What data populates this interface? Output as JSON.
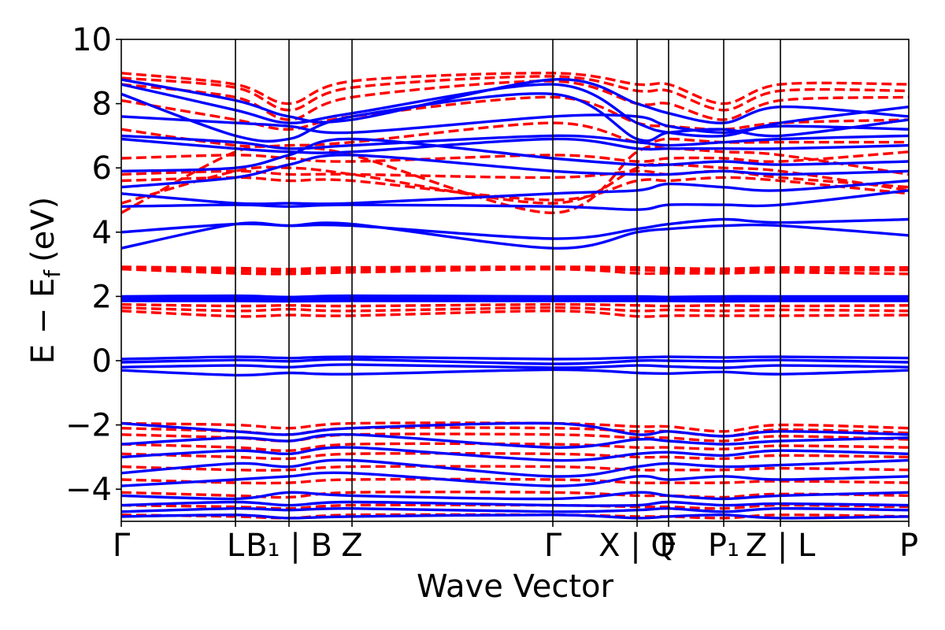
{
  "chart_data": {
    "type": "line",
    "xlabel": "Wave Vector",
    "ylabel_main": "E − E",
    "ylabel_sub": "f",
    "ylabel_unit": "(eV)",
    "ylim": [
      -5,
      10
    ],
    "yticks": [
      -4,
      -2,
      0,
      2,
      4,
      6,
      8,
      10
    ],
    "ytick_labels": [
      "−4",
      "−2",
      "0",
      "2",
      "4",
      "6",
      "8",
      "10"
    ],
    "xlim": [
      0,
      10
    ],
    "kpoints": [
      {
        "x": 0.0,
        "label": "Γ"
      },
      {
        "x": 1.45,
        "label": "L"
      },
      {
        "x": 2.13,
        "label": "B₁ | B"
      },
      {
        "x": 2.93,
        "label": "Z"
      },
      {
        "x": 5.48,
        "label": "Γ"
      },
      {
        "x": 6.55,
        "label": "X | Q"
      },
      {
        "x": 6.95,
        "label": "F"
      },
      {
        "x": 7.65,
        "label": "P₁"
      },
      {
        "x": 8.37,
        "label": "Z | L"
      },
      {
        "x": 10.0,
        "label": "P"
      }
    ],
    "series_styles": [
      {
        "style": "solid",
        "color": "#0000ff"
      },
      {
        "style": "dashed",
        "color": "#ff0000"
      }
    ],
    "blue_bands": [
      [
        8.75,
        8.1,
        7.6,
        7.5,
        8.75,
        8.0,
        7.7,
        7.4,
        7.9,
        7.6
      ],
      [
        8.6,
        7.8,
        7.4,
        7.7,
        8.6,
        7.4,
        7.1,
        7.0,
        7.4,
        7.9
      ],
      [
        8.3,
        7.0,
        6.9,
        7.6,
        8.3,
        6.9,
        7.1,
        7.2,
        7.0,
        7.5
      ],
      [
        7.6,
        7.4,
        7.3,
        7.1,
        7.6,
        7.6,
        7.3,
        7.1,
        7.3,
        7.2
      ],
      [
        7.0,
        6.8,
        6.6,
        6.7,
        7.0,
        6.8,
        6.7,
        6.8,
        6.9,
        7.0
      ],
      [
        6.9,
        6.6,
        6.5,
        6.5,
        6.9,
        6.6,
        6.6,
        6.6,
        6.6,
        6.7
      ],
      [
        5.9,
        6.0,
        6.4,
        6.9,
        6.3,
        6.1,
        6.1,
        6.2,
        6.1,
        6.2
      ],
      [
        5.4,
        5.7,
        6.1,
        6.4,
        5.9,
        5.8,
        5.8,
        5.9,
        5.8,
        5.9
      ],
      [
        5.2,
        4.9,
        4.9,
        4.9,
        5.2,
        5.3,
        5.5,
        5.4,
        5.3,
        5.6
      ],
      [
        4.8,
        4.85,
        4.8,
        4.85,
        4.8,
        4.7,
        4.85,
        4.85,
        4.85,
        5.3
      ],
      [
        4.0,
        4.25,
        4.2,
        4.2,
        3.8,
        4.1,
        4.25,
        4.4,
        4.3,
        4.4
      ],
      [
        3.5,
        4.25,
        4.2,
        4.25,
        3.5,
        4.0,
        4.1,
        4.2,
        4.2,
        3.9
      ],
      [
        2.0,
        2.02,
        1.98,
        2.02,
        2.0,
        2.0,
        1.98,
        2.0,
        2.0,
        2.0
      ],
      [
        1.95,
        1.97,
        1.95,
        1.96,
        1.95,
        1.96,
        1.95,
        1.96,
        1.97,
        1.96
      ],
      [
        1.9,
        1.91,
        1.9,
        1.91,
        1.9,
        1.9,
        1.9,
        1.91,
        1.9,
        1.9
      ],
      [
        1.86,
        1.86,
        1.85,
        1.86,
        1.86,
        1.86,
        1.86,
        1.85,
        1.86,
        1.86
      ],
      [
        0.05,
        0.12,
        0.08,
        0.12,
        0.05,
        0.1,
        0.12,
        0.1,
        0.12,
        0.08
      ],
      [
        -0.05,
        0.02,
        -0.02,
        0.04,
        -0.1,
        0.0,
        0.0,
        -0.02,
        0.02,
        -0.05
      ],
      [
        -0.2,
        -0.15,
        -0.2,
        -0.12,
        -0.22,
        -0.15,
        -0.18,
        -0.22,
        -0.15,
        -0.2
      ],
      [
        -0.3,
        -0.45,
        -0.38,
        -0.42,
        -0.28,
        -0.38,
        -0.4,
        -0.35,
        -0.42,
        -0.3
      ],
      [
        -1.95,
        -2.2,
        -2.3,
        -2.1,
        -1.95,
        -2.3,
        -2.2,
        -2.35,
        -2.2,
        -2.3
      ],
      [
        -2.6,
        -2.4,
        -2.5,
        -2.3,
        -2.7,
        -2.45,
        -2.5,
        -2.6,
        -2.5,
        -2.4
      ],
      [
        -3.0,
        -2.8,
        -2.9,
        -2.7,
        -3.1,
        -2.9,
        -2.85,
        -2.95,
        -2.8,
        -2.9
      ],
      [
        -3.5,
        -3.2,
        -3.3,
        -3.1,
        -3.6,
        -3.3,
        -3.2,
        -3.3,
        -3.25,
        -3.1
      ],
      [
        -3.9,
        -3.7,
        -3.6,
        -3.5,
        -3.9,
        -3.6,
        -3.7,
        -3.6,
        -3.7,
        -3.6
      ],
      [
        -4.2,
        -4.3,
        -4.1,
        -4.2,
        -4.3,
        -4.1,
        -4.2,
        -4.3,
        -4.2,
        -4.1
      ],
      [
        -4.5,
        -4.4,
        -4.5,
        -4.4,
        -4.5,
        -4.5,
        -4.4,
        -4.5,
        -4.45,
        -4.5
      ],
      [
        -4.7,
        -4.6,
        -4.65,
        -4.6,
        -4.7,
        -4.65,
        -4.6,
        -4.7,
        -4.6,
        -4.65
      ],
      [
        -4.85,
        -4.8,
        -4.9,
        -4.85,
        -4.8,
        -4.9,
        -4.85,
        -4.8,
        -4.9,
        -4.85
      ]
    ],
    "red_bands": [
      [
        8.95,
        8.6,
        8.0,
        8.7,
        8.95,
        8.6,
        8.6,
        8.0,
        8.6,
        8.6
      ],
      [
        8.8,
        8.5,
        7.8,
        8.5,
        8.85,
        8.4,
        8.4,
        7.8,
        8.4,
        8.4
      ],
      [
        8.6,
        8.2,
        7.5,
        8.2,
        8.7,
        8.0,
        8.0,
        7.5,
        8.1,
        8.2
      ],
      [
        8.1,
        7.5,
        7.2,
        7.6,
        8.2,
        7.4,
        7.3,
        7.2,
        7.4,
        7.5
      ],
      [
        7.2,
        6.7,
        6.7,
        6.8,
        7.4,
        6.8,
        6.9,
        6.8,
        6.8,
        6.8
      ],
      [
        6.3,
        6.4,
        6.3,
        6.2,
        6.4,
        6.2,
        6.3,
        6.3,
        6.2,
        6.5
      ],
      [
        5.8,
        5.9,
        5.8,
        5.8,
        5.7,
        5.9,
        5.8,
        5.9,
        5.7,
        5.4
      ],
      [
        5.6,
        5.7,
        5.6,
        5.6,
        5.0,
        5.6,
        5.6,
        5.7,
        5.6,
        5.2
      ],
      [
        4.9,
        5.9,
        6.0,
        5.8,
        4.9,
        6.0,
        6.1,
        6.0,
        5.9,
        5.3
      ],
      [
        4.6,
        6.5,
        6.6,
        6.4,
        4.6,
        6.5,
        6.6,
        6.5,
        6.4,
        5.8
      ],
      [
        2.92,
        2.88,
        2.85,
        2.9,
        2.92,
        2.9,
        2.88,
        2.86,
        2.9,
        2.9
      ],
      [
        2.88,
        2.8,
        2.78,
        2.82,
        2.88,
        2.82,
        2.8,
        2.8,
        2.82,
        2.82
      ],
      [
        2.85,
        2.72,
        2.7,
        2.75,
        2.85,
        2.72,
        2.72,
        2.72,
        2.75,
        2.7
      ],
      [
        1.75,
        1.7,
        1.72,
        1.7,
        1.75,
        1.72,
        1.7,
        1.72,
        1.7,
        1.72
      ],
      [
        1.65,
        1.55,
        1.6,
        1.55,
        1.65,
        1.55,
        1.58,
        1.55,
        1.58,
        1.55
      ],
      [
        1.55,
        1.38,
        1.42,
        1.4,
        1.55,
        1.38,
        1.4,
        1.4,
        1.4,
        1.42
      ],
      [
        -1.95,
        -2.0,
        -2.1,
        -1.95,
        -1.95,
        -2.05,
        -2.05,
        -2.2,
        -2.0,
        -2.1
      ],
      [
        -2.1,
        -2.2,
        -2.3,
        -2.1,
        -2.1,
        -2.2,
        -2.2,
        -2.35,
        -2.15,
        -2.25
      ],
      [
        -2.3,
        -2.4,
        -2.5,
        -2.3,
        -2.3,
        -2.4,
        -2.4,
        -2.5,
        -2.35,
        -2.45
      ],
      [
        -2.6,
        -2.7,
        -2.8,
        -2.6,
        -2.6,
        -2.7,
        -2.7,
        -2.75,
        -2.65,
        -2.7
      ],
      [
        -2.9,
        -3.0,
        -3.05,
        -2.9,
        -2.9,
        -3.0,
        -3.0,
        -3.05,
        -2.95,
        -3.0
      ],
      [
        -3.3,
        -3.4,
        -3.4,
        -3.3,
        -3.3,
        -3.4,
        -3.4,
        -3.4,
        -3.35,
        -3.4
      ],
      [
        -3.7,
        -3.8,
        -3.8,
        -3.7,
        -3.7,
        -3.8,
        -3.8,
        -3.8,
        -3.75,
        -3.8
      ],
      [
        -4.1,
        -4.2,
        -4.25,
        -4.1,
        -4.1,
        -4.2,
        -4.2,
        -4.25,
        -4.15,
        -4.2
      ],
      [
        -4.5,
        -4.55,
        -4.6,
        -4.5,
        -4.5,
        -4.55,
        -4.55,
        -4.6,
        -4.5,
        -4.55
      ],
      [
        -4.8,
        -4.85,
        -4.9,
        -4.8,
        -4.8,
        -4.85,
        -4.85,
        -4.9,
        -4.8,
        -4.85
      ]
    ]
  }
}
